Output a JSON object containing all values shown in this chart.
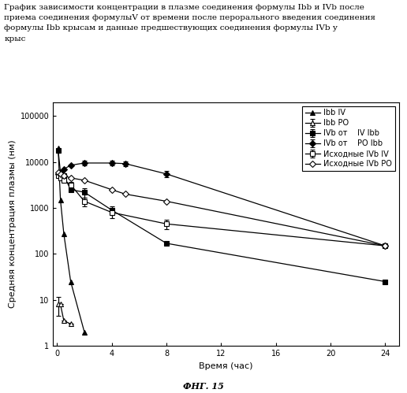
{
  "title_text": "График зависимости концентрации в плазме соединения формулы Ibb и IVb после\nприема соединения формулыV от времени после перорального введения соединения\nформулы Ibb крысам и данные предшествующих соединения формулы IVb у\nкрыс",
  "ylabel": "Средняя концентрация плазмы (нм)",
  "xlabel": "Время (час)",
  "fig_label": "ФНГ. 15",
  "series": [
    {
      "label": "Ibb IV",
      "marker": "^",
      "fillstyle": "full",
      "x": [
        0.083,
        0.25,
        0.5,
        1.0,
        2.0
      ],
      "y": [
        20000,
        1500,
        270,
        25,
        2.0
      ],
      "yerr": [
        null,
        null,
        null,
        null,
        null
      ]
    },
    {
      "label": "Ibb PO",
      "marker": "^",
      "fillstyle": "none",
      "x": [
        0.083,
        0.25,
        0.5,
        1.0
      ],
      "y": [
        8,
        8,
        3.5,
        3.0
      ],
      "yerr": [
        3.5,
        null,
        null,
        null
      ]
    },
    {
      "label": "IVb от    IV Ibb",
      "marker": "s",
      "fillstyle": "full",
      "x": [
        0.083,
        0.25,
        0.5,
        1.0,
        2.0,
        4.0,
        8.0,
        24.0
      ],
      "y": [
        18000,
        6000,
        5000,
        2500,
        2200,
        900,
        170,
        25
      ],
      "yerr": [
        null,
        null,
        null,
        null,
        500,
        200,
        null,
        null
      ]
    },
    {
      "label": "IVb от    PO Ibb",
      "marker": "D",
      "fillstyle": "full",
      "x": [
        0.083,
        0.25,
        0.5,
        1.0,
        2.0,
        4.0,
        5.0,
        8.0,
        24.0
      ],
      "y": [
        5500,
        5000,
        7000,
        8500,
        9500,
        9500,
        9200,
        5500,
        150
      ],
      "yerr": [
        null,
        null,
        null,
        null,
        1000,
        1000,
        1000,
        800,
        null
      ]
    },
    {
      "label": "Исходные IVb IV",
      "marker": "s",
      "fillstyle": "none",
      "x": [
        0.083,
        0.25,
        0.5,
        1.0,
        2.0,
        4.0,
        8.0,
        24.0
      ],
      "y": [
        5000,
        4500,
        4000,
        3200,
        1400,
        800,
        450,
        150
      ],
      "yerr": [
        null,
        null,
        null,
        500,
        300,
        200,
        100,
        null
      ]
    },
    {
      "label": "Исходные IVb PO",
      "marker": "D",
      "fillstyle": "none",
      "x": [
        0.083,
        0.25,
        0.5,
        1.0,
        2.0,
        4.0,
        5.0,
        8.0,
        24.0
      ],
      "y": [
        6000,
        5500,
        5000,
        4500,
        4000,
        2500,
        2000,
        1400,
        150
      ],
      "yerr": [
        null,
        null,
        null,
        null,
        null,
        null,
        null,
        null,
        null
      ]
    }
  ],
  "ylim": [
    1,
    200000
  ],
  "xticks": [
    0,
    4,
    8,
    12,
    16,
    20,
    24
  ],
  "yticks": [
    1,
    10,
    100,
    1000,
    10000,
    100000
  ],
  "ytick_labels": [
    "1",
    "10",
    "100",
    "1000",
    "10000",
    "100000"
  ],
  "background_color": "#ffffff",
  "fontsize_title": 7.5,
  "fontsize_axis": 8,
  "fontsize_legend": 7,
  "fontsize_ticks": 7
}
